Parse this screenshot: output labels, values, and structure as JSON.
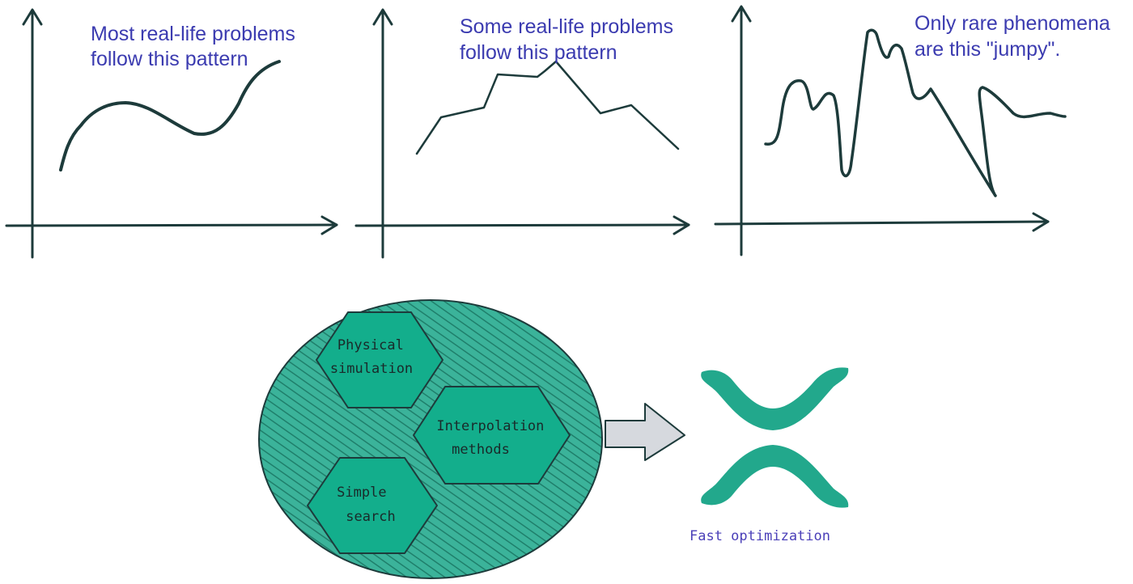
{
  "panels": [
    {
      "id": "smooth",
      "caption_lines": [
        "Most real-life problems",
        "follow this pattern"
      ]
    },
    {
      "id": "piecewise",
      "caption_lines": [
        "Some real-life problems",
        "follow this pattern"
      ]
    },
    {
      "id": "jumpy",
      "caption_lines": [
        "Only rare phenomena",
        "are this \"jumpy\"."
      ]
    }
  ],
  "methods": [
    {
      "id": "physical",
      "lines": [
        "Physical",
        "simulation"
      ]
    },
    {
      "id": "interpolation",
      "lines": [
        "Interpolation",
        "methods"
      ]
    },
    {
      "id": "search",
      "lines": [
        "Simple",
        "search"
      ]
    }
  ],
  "result_label": "Fast optimization",
  "colors": {
    "ink": "#1d3b3b",
    "caption": "#3b3bb0",
    "circle_fill": "#2aa58a",
    "hex_fill": "#13ae8c",
    "arrow_fill": "#d6d9de",
    "logo_fill": "#22a88c",
    "result_label": "#4a3fb8"
  },
  "icons": [
    "right-arrow-icon",
    "optimization-logo-icon"
  ]
}
